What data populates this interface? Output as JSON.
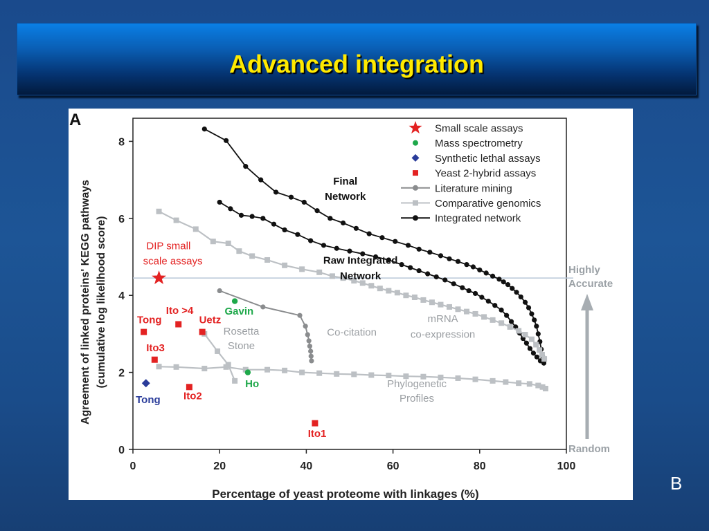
{
  "slide": {
    "title": "Advanced integration",
    "panel_letter": "A",
    "corner_label": "B"
  },
  "colors": {
    "title_text": "#ffea00",
    "small_scale": "#e32222",
    "mass_spec": "#1ea84a",
    "synthetic_lethal": "#2a3c9a",
    "yeast2h": "#e32222",
    "literature": "#8a8c8e",
    "comparative": "#bcc0c4",
    "integrated": "#111111"
  },
  "chart_data": {
    "type": "line",
    "xlabel": "Percentage of yeast proteome with linkages (%)",
    "ylabel_line1": "Agreement of linked proteins' KEGG pathways",
    "ylabel_line2": "(cumulative log likelihood score)",
    "xlim": [
      0,
      100
    ],
    "ylim": [
      0,
      8.6
    ],
    "xticks": [
      0,
      20,
      40,
      60,
      80,
      100
    ],
    "yticks": [
      0,
      2,
      4,
      6,
      8
    ],
    "grid": false,
    "legend_position": "top-right",
    "legend": [
      {
        "label": "Small scale assays",
        "marker": "star",
        "color": "#e32222"
      },
      {
        "label": "Mass spectrometry",
        "marker": "circle",
        "color": "#1ea84a"
      },
      {
        "label": "Synthetic lethal assays",
        "marker": "diamond",
        "color": "#2a3c9a"
      },
      {
        "label": "Yeast 2-hybrid assays",
        "marker": "square",
        "color": "#e32222"
      },
      {
        "label": "Literature mining",
        "marker": "line-circle",
        "color": "#8a8c8e"
      },
      {
        "label": "Comparative genomics",
        "marker": "line-square",
        "color": "#bcc0c4"
      },
      {
        "label": "Integrated network",
        "marker": "line-circle",
        "color": "#111111"
      }
    ],
    "reference_line": {
      "y": 4.45,
      "label_top": "Highly",
      "label_bottom": "Accurate",
      "label_baseline": "Random"
    },
    "series": [
      {
        "name": "Final Network",
        "kind": "integrated",
        "points": [
          [
            16.5,
            8.32
          ],
          [
            21.5,
            8.02
          ],
          [
            26,
            7.35
          ],
          [
            29.5,
            7.0
          ],
          [
            33,
            6.68
          ],
          [
            36.5,
            6.55
          ],
          [
            39.5,
            6.42
          ],
          [
            42.5,
            6.2
          ],
          [
            45.5,
            6.0
          ],
          [
            48.5,
            5.88
          ],
          [
            51.5,
            5.74
          ],
          [
            54.5,
            5.6
          ],
          [
            57.5,
            5.5
          ],
          [
            60.5,
            5.4
          ],
          [
            63.5,
            5.3
          ],
          [
            66,
            5.2
          ],
          [
            68.5,
            5.12
          ],
          [
            71,
            5.03
          ],
          [
            73,
            4.95
          ],
          [
            75,
            4.88
          ],
          [
            77,
            4.8
          ],
          [
            78.5,
            4.74
          ],
          [
            80,
            4.66
          ],
          [
            81.5,
            4.58
          ],
          [
            83,
            4.5
          ],
          [
            84.5,
            4.42
          ],
          [
            85.5,
            4.35
          ],
          [
            86.5,
            4.28
          ],
          [
            87.5,
            4.18
          ],
          [
            88.5,
            4.08
          ],
          [
            89.5,
            3.96
          ],
          [
            90.5,
            3.82
          ],
          [
            91.3,
            3.68
          ],
          [
            92,
            3.52
          ],
          [
            92.6,
            3.36
          ],
          [
            93.1,
            3.2
          ],
          [
            93.5,
            3.0
          ],
          [
            93.9,
            2.8
          ],
          [
            94.2,
            2.6
          ],
          [
            94.5,
            2.42
          ],
          [
            94.8,
            2.28
          ]
        ]
      },
      {
        "name": "Raw Integrated Network",
        "kind": "integrated",
        "points": [
          [
            20,
            6.42
          ],
          [
            22.5,
            6.25
          ],
          [
            25,
            6.08
          ],
          [
            27.5,
            6.05
          ],
          [
            30,
            6.0
          ],
          [
            32.5,
            5.85
          ],
          [
            35,
            5.7
          ],
          [
            38,
            5.58
          ],
          [
            41,
            5.42
          ],
          [
            44,
            5.3
          ],
          [
            47,
            5.22
          ],
          [
            50,
            5.15
          ],
          [
            53,
            5.08
          ],
          [
            56,
            5.0
          ],
          [
            59,
            4.92
          ],
          [
            62,
            4.8
          ],
          [
            64,
            4.72
          ],
          [
            66,
            4.64
          ],
          [
            68,
            4.56
          ],
          [
            70,
            4.48
          ],
          [
            72,
            4.4
          ],
          [
            74,
            4.3
          ],
          [
            76,
            4.2
          ],
          [
            77.5,
            4.12
          ],
          [
            79,
            4.05
          ],
          [
            80.5,
            3.95
          ],
          [
            82,
            3.85
          ],
          [
            83.5,
            3.74
          ],
          [
            85,
            3.62
          ],
          [
            86.2,
            3.48
          ],
          [
            87.3,
            3.32
          ],
          [
            88.3,
            3.18
          ],
          [
            89.2,
            3.02
          ],
          [
            90,
            2.88
          ],
          [
            90.8,
            2.76
          ],
          [
            91.6,
            2.62
          ],
          [
            92.4,
            2.5
          ],
          [
            93.2,
            2.4
          ],
          [
            94,
            2.3
          ],
          [
            94.8,
            2.24
          ]
        ]
      },
      {
        "name": "Comparative genomics (mRNA co-expression)",
        "kind": "comparative",
        "points": [
          [
            6,
            6.18
          ],
          [
            10,
            5.95
          ],
          [
            14.5,
            5.72
          ],
          [
            18.5,
            5.4
          ],
          [
            22,
            5.35
          ],
          [
            24.5,
            5.15
          ],
          [
            27.5,
            5.02
          ],
          [
            31,
            4.92
          ],
          [
            35,
            4.78
          ],
          [
            39,
            4.68
          ],
          [
            43,
            4.6
          ],
          [
            46,
            4.5
          ],
          [
            48.5,
            4.45
          ],
          [
            51,
            4.38
          ],
          [
            53,
            4.32
          ],
          [
            55,
            4.25
          ],
          [
            57,
            4.18
          ],
          [
            59,
            4.12
          ],
          [
            61,
            4.07
          ],
          [
            63,
            4.0
          ],
          [
            65,
            3.95
          ],
          [
            67,
            3.88
          ],
          [
            69,
            3.82
          ],
          [
            71,
            3.76
          ],
          [
            73,
            3.7
          ],
          [
            75,
            3.64
          ],
          [
            77,
            3.58
          ],
          [
            79,
            3.52
          ],
          [
            81,
            3.44
          ],
          [
            83,
            3.36
          ],
          [
            85,
            3.28
          ],
          [
            87,
            3.18
          ],
          [
            89,
            3.08
          ],
          [
            90.5,
            2.98
          ],
          [
            92,
            2.86
          ],
          [
            93,
            2.72
          ],
          [
            93.8,
            2.58
          ],
          [
            94.4,
            2.46
          ],
          [
            94.9,
            2.35
          ]
        ]
      },
      {
        "name": "Comparative genomics (Rosetta Stone)",
        "kind": "comparative",
        "points": [
          [
            16.5,
            3.0
          ],
          [
            19.5,
            2.55
          ],
          [
            22,
            2.2
          ],
          [
            23.5,
            1.78
          ]
        ]
      },
      {
        "name": "Comparative genomics (Phylogenetic Profiles)",
        "kind": "comparative",
        "points": [
          [
            6,
            2.15
          ],
          [
            10,
            2.14
          ],
          [
            16.5,
            2.1
          ],
          [
            21.5,
            2.14
          ],
          [
            26,
            2.07
          ],
          [
            31,
            2.07
          ],
          [
            35,
            2.05
          ],
          [
            39,
            2.0
          ],
          [
            43,
            1.98
          ],
          [
            47,
            1.96
          ],
          [
            51,
            1.95
          ],
          [
            55,
            1.93
          ],
          [
            59,
            1.92
          ],
          [
            63,
            1.9
          ],
          [
            67,
            1.89
          ],
          [
            71,
            1.87
          ],
          [
            75,
            1.85
          ],
          [
            79,
            1.82
          ],
          [
            83,
            1.78
          ],
          [
            86,
            1.75
          ],
          [
            89,
            1.72
          ],
          [
            91.5,
            1.7
          ],
          [
            93.5,
            1.66
          ],
          [
            94.5,
            1.62
          ],
          [
            95.2,
            1.58
          ]
        ]
      },
      {
        "name": "Literature mining (Co-citation)",
        "kind": "literature",
        "points": [
          [
            20,
            4.12
          ],
          [
            30,
            3.7
          ],
          [
            38.5,
            3.48
          ],
          [
            39.8,
            3.2
          ],
          [
            40.3,
            2.98
          ],
          [
            40.6,
            2.82
          ],
          [
            40.8,
            2.68
          ],
          [
            41,
            2.55
          ],
          [
            41.1,
            2.42
          ],
          [
            41.2,
            2.3
          ]
        ]
      }
    ],
    "scatter_points": [
      {
        "label": "DIP small scale assays",
        "kind": "star",
        "x": 6,
        "y": 4.45
      },
      {
        "label": "Gavin",
        "kind": "mass",
        "x": 23.5,
        "y": 3.85
      },
      {
        "label": "Ho",
        "kind": "mass",
        "x": 26.5,
        "y": 2.0
      },
      {
        "label": "Tong",
        "kind": "synth",
        "x": 3,
        "y": 1.72
      },
      {
        "label": "Tong",
        "kind": "y2h",
        "x": 2.5,
        "y": 3.05
      },
      {
        "label": "Ito >4",
        "kind": "y2h",
        "x": 10.5,
        "y": 3.25
      },
      {
        "label": "Uetz",
        "kind": "y2h",
        "x": 16,
        "y": 3.05
      },
      {
        "label": "Ito3",
        "kind": "y2h",
        "x": 5,
        "y": 2.33
      },
      {
        "label": "Ito2",
        "kind": "y2h",
        "x": 13,
        "y": 1.62
      },
      {
        "label": "Ito1",
        "kind": "y2h",
        "x": 42,
        "y": 0.68
      }
    ],
    "annotations": [
      {
        "text": "Final",
        "x": 49,
        "y": 6.88,
        "color": "#111111",
        "bold": true
      },
      {
        "text": "Network",
        "x": 49,
        "y": 6.48,
        "color": "#111111",
        "bold": true
      },
      {
        "text": "Raw Integrated",
        "x": 52.5,
        "y": 4.82,
        "color": "#111111",
        "bold": true
      },
      {
        "text": "Network",
        "x": 52.5,
        "y": 4.42,
        "color": "#111111",
        "bold": true
      },
      {
        "text": "DIP small",
        "x": 8.2,
        "y": 5.2,
        "color": "#e32222",
        "bold": false
      },
      {
        "text": "scale assays",
        "x": 9.2,
        "y": 4.8,
        "color": "#e32222",
        "bold": false
      },
      {
        "text": "Gavin",
        "x": 24.5,
        "y": 3.5,
        "color": "#1ea84a",
        "bold": true
      },
      {
        "text": "Ho",
        "x": 27.5,
        "y": 1.62,
        "color": "#1ea84a",
        "bold": true
      },
      {
        "text": "Tong",
        "x": 3.5,
        "y": 1.2,
        "color": "#2a3c9a",
        "bold": true
      },
      {
        "text": "Tong",
        "x": 3.8,
        "y": 3.28,
        "color": "#e32222",
        "bold": true
      },
      {
        "text": "Ito >4",
        "x": 10.8,
        "y": 3.52,
        "color": "#e32222",
        "bold": true
      },
      {
        "text": "Uetz",
        "x": 17.8,
        "y": 3.28,
        "color": "#e32222",
        "bold": true
      },
      {
        "text": "Ito3",
        "x": 5.2,
        "y": 2.55,
        "color": "#e32222",
        "bold": true
      },
      {
        "text": "Ito2",
        "x": 13.8,
        "y": 1.3,
        "color": "#e32222",
        "bold": true
      },
      {
        "text": "Ito1",
        "x": 42.5,
        "y": 0.32,
        "color": "#e32222",
        "bold": true
      },
      {
        "text": "Rosetta",
        "x": 25,
        "y": 2.98,
        "color": "#9a9ea2",
        "bold": false
      },
      {
        "text": "Stone",
        "x": 25,
        "y": 2.6,
        "color": "#9a9ea2",
        "bold": false
      },
      {
        "text": "Co-citation",
        "x": 50.5,
        "y": 2.95,
        "color": "#9a9ea2",
        "bold": false
      },
      {
        "text": "mRNA",
        "x": 71.5,
        "y": 3.3,
        "color": "#9a9ea2",
        "bold": false
      },
      {
        "text": "co-expression",
        "x": 71.5,
        "y": 2.9,
        "color": "#9a9ea2",
        "bold": false
      },
      {
        "text": "Phylogenetic",
        "x": 65.5,
        "y": 1.62,
        "color": "#9a9ea2",
        "bold": false
      },
      {
        "text": "Profiles",
        "x": 65.5,
        "y": 1.24,
        "color": "#9a9ea2",
        "bold": false
      }
    ]
  }
}
